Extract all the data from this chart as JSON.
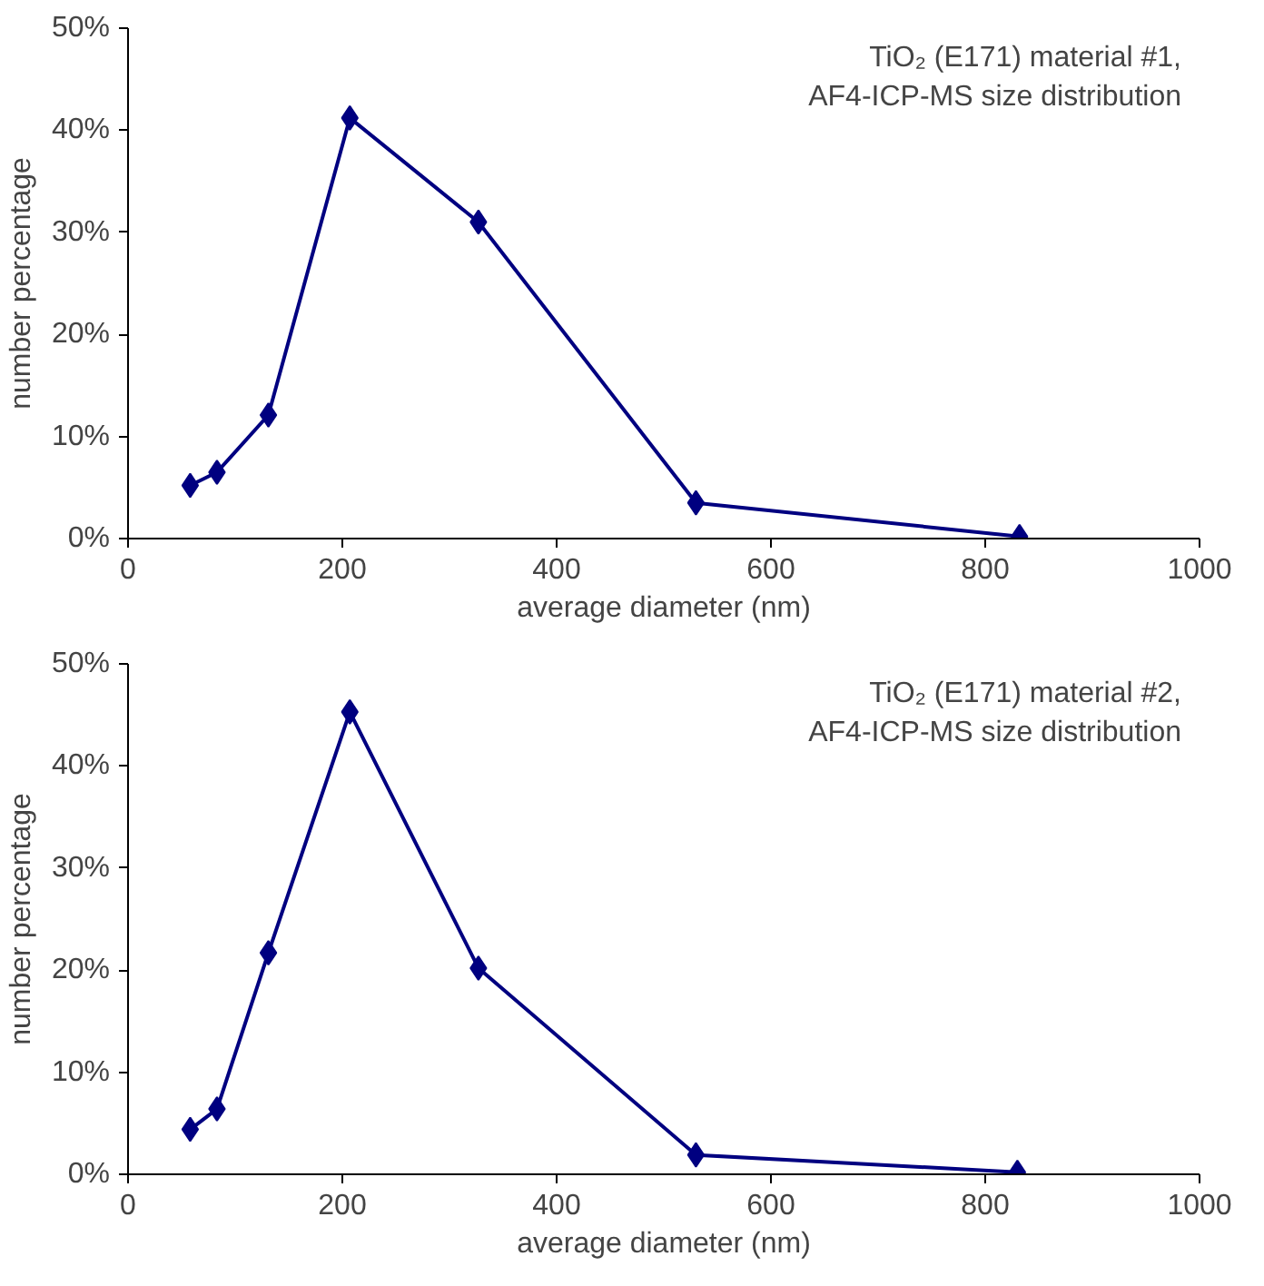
{
  "chart_data": [
    {
      "type": "line",
      "annotations": [
        "TiO₂ (E171) material #1,\nAF4-ICP-MS size distribution"
      ],
      "xlabel": "average diameter (nm)",
      "ylabel": "number percentage",
      "x": [
        58,
        83,
        131,
        207,
        327,
        530,
        832
      ],
      "series": [
        {
          "color": "#000080",
          "values": [
            5.2,
            6.5,
            12.1,
            41.2,
            31.0,
            3.5,
            0.2
          ]
        }
      ],
      "xlim": [
        0,
        1000
      ],
      "xticks": [
        0,
        200,
        400,
        600,
        800,
        1000
      ],
      "ylim": [
        0,
        50
      ],
      "yticks": [
        {
          "value": 0,
          "label": "0%"
        },
        {
          "value": 10,
          "label": "10%"
        },
        {
          "value": 20,
          "label": "20%"
        },
        {
          "value": 30,
          "label": "30%"
        },
        {
          "value": 40,
          "label": "40%"
        },
        {
          "value": 50,
          "label": "50%"
        }
      ],
      "marker": "diamond",
      "line_style": "solid",
      "grid": false
    },
    {
      "type": "line",
      "annotations": [
        "TiO₂ (E171) material #2,\nAF4-ICP-MS size distribution"
      ],
      "xlabel": "average diameter (nm)",
      "ylabel": "number percentage",
      "x": [
        58,
        83,
        131,
        207,
        327,
        530,
        830
      ],
      "series": [
        {
          "color": "#000080",
          "values": [
            4.4,
            6.4,
            21.7,
            45.3,
            20.2,
            1.9,
            0.2
          ]
        }
      ],
      "xlim": [
        0,
        1000
      ],
      "xticks": [
        0,
        200,
        400,
        600,
        800,
        1000
      ],
      "ylim": [
        0,
        50
      ],
      "yticks": [
        {
          "value": 0,
          "label": "0%"
        },
        {
          "value": 10,
          "label": "10%"
        },
        {
          "value": 20,
          "label": "20%"
        },
        {
          "value": 30,
          "label": "30%"
        },
        {
          "value": 40,
          "label": "40%"
        },
        {
          "value": 50,
          "label": "50%"
        }
      ],
      "marker": "diamond",
      "line_style": "solid",
      "grid": false
    }
  ]
}
